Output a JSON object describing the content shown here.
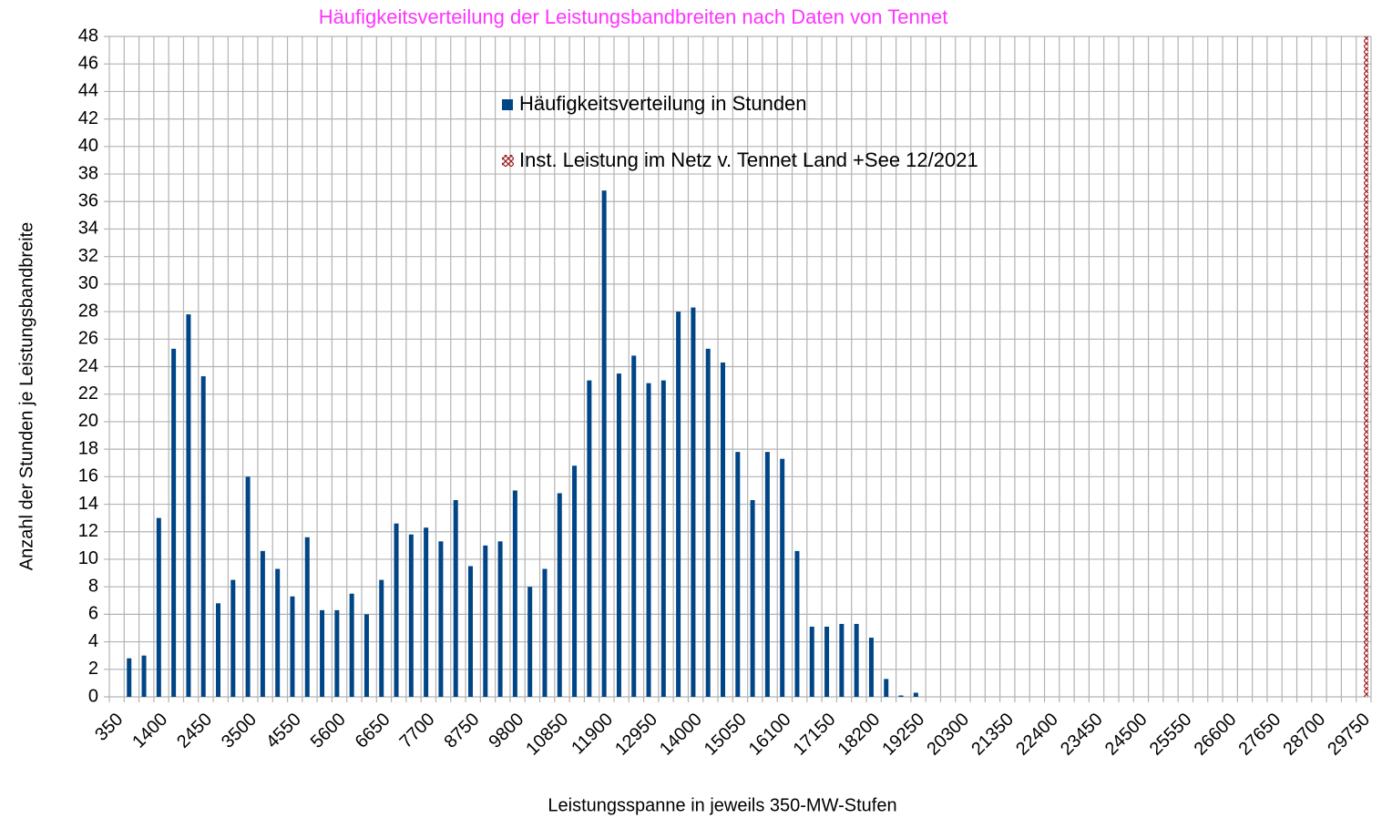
{
  "chart_data": {
    "type": "bar",
    "title": "Häufigkeitsverteilung der Leistungsbandbreiten nach Daten von Tennet",
    "x_label": "Leistungsspanne in jeweils 350-MW-Stufen",
    "y_label": "Anzahl der Stunden je Leistungsbandbreite",
    "categories": [
      "350",
      null,
      null,
      "1400",
      null,
      null,
      "2450",
      null,
      null,
      "3500",
      null,
      null,
      "4550",
      null,
      null,
      "5600",
      null,
      null,
      "6650",
      null,
      null,
      "7700",
      null,
      null,
      "8750",
      null,
      null,
      "9800",
      null,
      null,
      "10850",
      null,
      null,
      "11900",
      null,
      null,
      "12950",
      null,
      null,
      "14000",
      null,
      null,
      "15050",
      null,
      null,
      "16100",
      null,
      null,
      "17150",
      null,
      null,
      "18200",
      null,
      null,
      "19250",
      null,
      null,
      "20300",
      null,
      null,
      "21350",
      null,
      null,
      "22400",
      null,
      null,
      "23450",
      null,
      null,
      "24500",
      null,
      null,
      "25550",
      null,
      null,
      "26600",
      null,
      null,
      "27650",
      null,
      null,
      "28700",
      null,
      null,
      "29750"
    ],
    "series": [
      {
        "name": "Häufigkeitsverteilung in Stunden",
        "color": "#004586",
        "values": [
          0,
          2.8,
          3.0,
          13.0,
          25.3,
          27.8,
          23.3,
          6.8,
          8.5,
          16.0,
          10.6,
          9.3,
          7.3,
          11.6,
          6.3,
          6.3,
          7.5,
          6.0,
          8.5,
          12.6,
          11.8,
          12.3,
          11.3,
          14.3,
          9.5,
          11.0,
          11.3,
          15.0,
          8.0,
          9.3,
          14.8,
          16.8,
          23.0,
          36.8,
          23.5,
          24.8,
          22.8,
          23.0,
          28.0,
          28.3,
          25.3,
          24.3,
          17.8,
          14.3,
          17.8,
          17.3,
          10.6,
          5.1,
          5.1,
          5.3,
          5.3,
          4.3,
          1.3,
          0.1,
          0.3,
          0,
          0,
          0,
          0,
          0,
          0,
          0,
          0,
          0,
          0,
          0,
          0,
          0,
          0,
          0,
          0,
          0,
          0,
          0,
          0,
          0,
          0,
          0,
          0,
          0,
          0,
          0,
          0,
          0,
          0
        ]
      },
      {
        "name": "Inst. Leistung im Netz v. Tennet  Land +See 12/2021",
        "color": "#9c1c1c",
        "values": [
          null,
          null,
          null,
          null,
          null,
          null,
          null,
          null,
          null,
          null,
          null,
          null,
          null,
          null,
          null,
          null,
          null,
          null,
          null,
          null,
          null,
          null,
          null,
          null,
          null,
          null,
          null,
          null,
          null,
          null,
          null,
          null,
          null,
          null,
          null,
          null,
          null,
          null,
          null,
          null,
          null,
          null,
          null,
          null,
          null,
          null,
          null,
          null,
          null,
          null,
          null,
          null,
          null,
          null,
          null,
          null,
          null,
          null,
          null,
          null,
          null,
          null,
          null,
          null,
          null,
          null,
          null,
          null,
          null,
          null,
          null,
          null,
          null,
          null,
          null,
          null,
          null,
          null,
          null,
          null,
          null,
          null,
          null,
          null,
          48
        ]
      }
    ],
    "ylim": [
      0,
      48
    ],
    "yticks": [
      0,
      2,
      4,
      6,
      8,
      10,
      12,
      14,
      16,
      18,
      20,
      22,
      24,
      26,
      28,
      30,
      32,
      34,
      36,
      38,
      40,
      42,
      44,
      46,
      48
    ],
    "grid": true,
    "title_color": "#ff33ff"
  }
}
